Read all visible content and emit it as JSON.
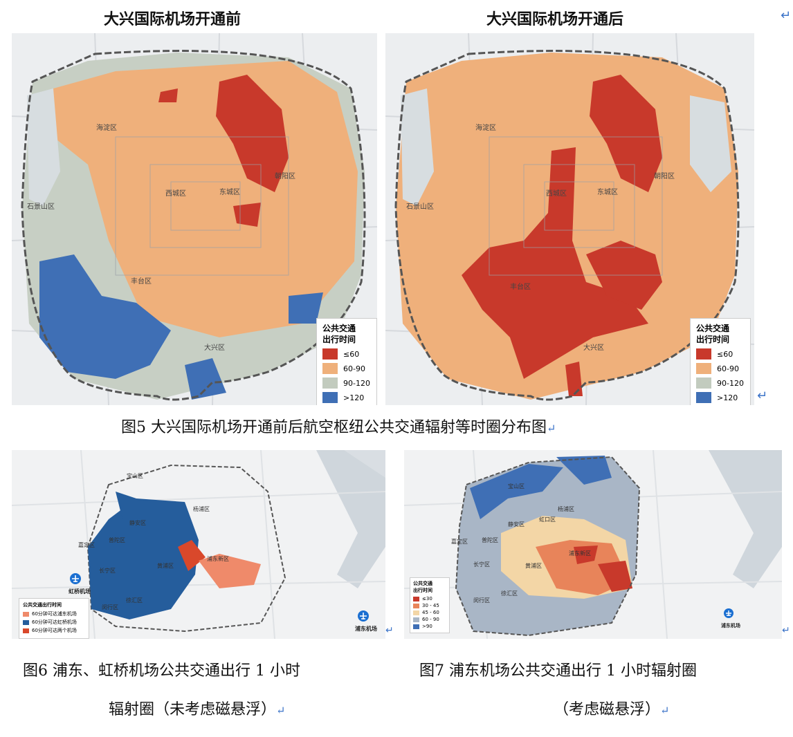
{
  "fig5": {
    "left_title": "大兴国际机场开通前",
    "right_title": "大兴国际机场开通后",
    "caption": "图5 大兴国际机场开通前后航空枢纽公共交通辐射等时圈分布图",
    "districts": {
      "haidian": "海淀区",
      "chaoyang": "朝阳区",
      "xicheng": "西城区",
      "dongcheng": "东城区",
      "shijingshan": "石景山区",
      "fengtai": "丰台区",
      "daxing": "大兴区"
    },
    "legend": {
      "title_line1": "公共交通",
      "title_line2": "出行时间",
      "items": [
        {
          "label": "≤60",
          "color": "#c8392b"
        },
        {
          "label": "60-90",
          "color": "#efb07b"
        },
        {
          "label": "90-120",
          "color": "#c2cbbe"
        },
        {
          "label": ">120",
          "color": "#3f6fb5"
        }
      ]
    }
  },
  "fig6": {
    "caption_line1": "图6 浦东、虹桥机场公共交通出行 1 小时",
    "caption_line2": "辐射圈（未考虑磁悬浮）",
    "airport_left": "虹桥机场",
    "airport_right": "浦东机场",
    "districts": [
      "宝山区",
      "静安区",
      "普陀区",
      "嘉定区",
      "长宁区",
      "黄浦区",
      "徐汇区",
      "浦东新区",
      "杨浦区",
      "闵行区"
    ],
    "legend": {
      "title": "公共交通出行时间",
      "items": [
        {
          "label": "60分钟可达浦东机场",
          "color": "#ef8a6a"
        },
        {
          "label": "60分钟可达虹桥机场",
          "color": "#255d9c"
        },
        {
          "label": "60分钟可达两个机场",
          "color": "#d9482b"
        }
      ]
    }
  },
  "fig7": {
    "caption_line1": "图7 浦东机场公共交通出行 1 小时辐射圈",
    "caption_line2": "（考虑磁悬浮）",
    "airport_right": "浦东机场",
    "districts": [
      "宝山区",
      "杨浦区",
      "虹口区",
      "静安区",
      "普陀区",
      "嘉定区",
      "长宁区",
      "黄浦区",
      "浦东新区",
      "徐汇区",
      "闵行区"
    ],
    "legend": {
      "title_line1": "公共交通",
      "title_line2": "出行时间",
      "items": [
        {
          "label": "≤30",
          "color": "#c8392b"
        },
        {
          "label": "30 - 45",
          "color": "#e8845a"
        },
        {
          "label": "45 - 60",
          "color": "#f3d6a6"
        },
        {
          "label": "60 - 90",
          "color": "#a9b6c6"
        },
        {
          "label": ">90",
          "color": "#3f6fb5"
        }
      ]
    }
  }
}
